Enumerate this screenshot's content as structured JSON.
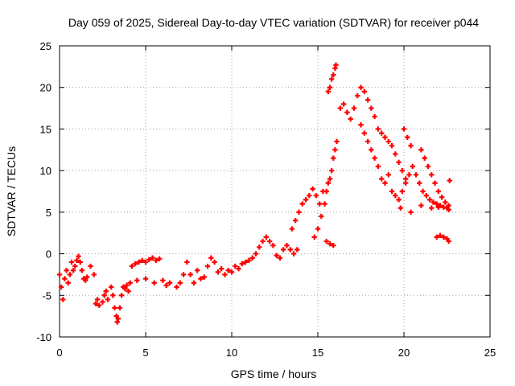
{
  "chart_data": {
    "type": "scatter",
    "title": "Day 059 of 2025, Sidereal Day-to-day VTEC variation (SDTVAR) for receiver p044",
    "xlabel": "GPS time / hours",
    "ylabel": "SDTVAR / TECUs",
    "xlim": [
      0,
      25
    ],
    "ylim": [
      -10,
      25
    ],
    "xticks": [
      0,
      5,
      10,
      15,
      20,
      25
    ],
    "yticks": [
      -10,
      -5,
      0,
      5,
      10,
      15,
      20,
      25
    ],
    "grid": true,
    "marker": "+",
    "color": "#ff0000",
    "series": [
      {
        "name": "SDTVAR",
        "points": [
          [
            0.0,
            -2.5
          ],
          [
            0.1,
            -4.0
          ],
          [
            0.2,
            -5.5
          ],
          [
            0.3,
            -3.0
          ],
          [
            0.4,
            -2.0
          ],
          [
            0.5,
            -3.5
          ],
          [
            0.6,
            -2.5
          ],
          [
            0.7,
            -1.0
          ],
          [
            0.8,
            -2.0
          ],
          [
            0.9,
            -1.5
          ],
          [
            1.0,
            -0.8
          ],
          [
            1.1,
            -0.3
          ],
          [
            1.2,
            -1.0
          ],
          [
            1.3,
            -2.0
          ],
          [
            1.4,
            -3.0
          ],
          [
            1.5,
            -3.2
          ],
          [
            1.6,
            -2.8
          ],
          [
            1.8,
            -1.5
          ],
          [
            2.0,
            -2.5
          ],
          [
            2.1,
            -6.0
          ],
          [
            2.2,
            -5.5
          ],
          [
            2.3,
            -6.2
          ],
          [
            2.5,
            -5.8
          ],
          [
            2.6,
            -5.0
          ],
          [
            2.7,
            -4.5
          ],
          [
            2.8,
            -5.5
          ],
          [
            3.0,
            -4.0
          ],
          [
            3.1,
            -5.0
          ],
          [
            3.2,
            -6.5
          ],
          [
            3.3,
            -7.5
          ],
          [
            3.35,
            -8.2
          ],
          [
            3.4,
            -7.8
          ],
          [
            3.5,
            -6.5
          ],
          [
            3.6,
            -5.0
          ],
          [
            3.7,
            -4.0
          ],
          [
            3.8,
            -4.2
          ],
          [
            3.9,
            -3.8
          ],
          [
            4.0,
            -4.5
          ],
          [
            4.1,
            -3.5
          ],
          [
            4.2,
            -1.5
          ],
          [
            4.4,
            -1.2
          ],
          [
            4.6,
            -1.0
          ],
          [
            4.8,
            -0.8
          ],
          [
            5.0,
            -1.0
          ],
          [
            5.2,
            -0.7
          ],
          [
            5.4,
            -0.5
          ],
          [
            5.6,
            -0.8
          ],
          [
            5.8,
            -0.6
          ],
          [
            4.5,
            -3.2
          ],
          [
            5.0,
            -3.0
          ],
          [
            5.5,
            -3.5
          ],
          [
            6.0,
            -3.2
          ],
          [
            6.2,
            -3.8
          ],
          [
            6.4,
            -3.5
          ],
          [
            6.8,
            -4.0
          ],
          [
            7.0,
            -3.5
          ],
          [
            7.2,
            -2.5
          ],
          [
            7.4,
            -1.0
          ],
          [
            7.6,
            -2.5
          ],
          [
            7.8,
            -3.5
          ],
          [
            8.0,
            -2.0
          ],
          [
            8.2,
            -3.0
          ],
          [
            8.4,
            -2.8
          ],
          [
            8.6,
            -1.5
          ],
          [
            8.8,
            -0.5
          ],
          [
            9.0,
            -1.0
          ],
          [
            9.2,
            -2.2
          ],
          [
            9.4,
            -1.8
          ],
          [
            9.6,
            -2.5
          ],
          [
            9.8,
            -2.0
          ],
          [
            10.0,
            -2.2
          ],
          [
            10.2,
            -1.5
          ],
          [
            10.4,
            -1.8
          ],
          [
            10.6,
            -1.2
          ],
          [
            10.8,
            -1.0
          ],
          [
            11.0,
            -0.8
          ],
          [
            11.2,
            -0.5
          ],
          [
            11.4,
            0.0
          ],
          [
            11.6,
            0.8
          ],
          [
            11.8,
            1.5
          ],
          [
            12.0,
            2.0
          ],
          [
            12.2,
            1.5
          ],
          [
            12.4,
            1.0
          ],
          [
            12.6,
            -0.2
          ],
          [
            12.8,
            -0.5
          ],
          [
            13.0,
            0.5
          ],
          [
            13.2,
            1.0
          ],
          [
            13.4,
            0.5
          ],
          [
            13.6,
            0.0
          ],
          [
            13.8,
            0.5
          ],
          [
            13.5,
            3.0
          ],
          [
            13.7,
            4.0
          ],
          [
            13.9,
            5.0
          ],
          [
            14.1,
            6.0
          ],
          [
            14.3,
            6.5
          ],
          [
            14.5,
            7.0
          ],
          [
            14.7,
            7.8
          ],
          [
            14.9,
            7.0
          ],
          [
            15.1,
            6.0
          ],
          [
            15.3,
            7.5
          ],
          [
            14.8,
            2.0
          ],
          [
            15.0,
            3.0
          ],
          [
            15.2,
            4.5
          ],
          [
            15.4,
            6.0
          ],
          [
            15.5,
            7.5
          ],
          [
            15.6,
            8.5
          ],
          [
            15.7,
            9.0
          ],
          [
            15.8,
            10.0
          ],
          [
            15.9,
            11.5
          ],
          [
            16.0,
            12.5
          ],
          [
            16.1,
            13.5
          ],
          [
            15.5,
            1.5
          ],
          [
            15.7,
            1.2
          ],
          [
            15.9,
            1.0
          ],
          [
            15.6,
            19.5
          ],
          [
            15.7,
            20.0
          ],
          [
            15.8,
            21.0
          ],
          [
            15.9,
            21.5
          ],
          [
            16.0,
            22.3
          ],
          [
            16.05,
            22.7
          ],
          [
            16.3,
            17.5
          ],
          [
            16.5,
            18.0
          ],
          [
            16.7,
            17.0
          ],
          [
            16.9,
            16.2
          ],
          [
            17.1,
            17.5
          ],
          [
            17.3,
            19.0
          ],
          [
            17.5,
            20.0
          ],
          [
            17.7,
            19.5
          ],
          [
            17.9,
            18.5
          ],
          [
            18.1,
            17.5
          ],
          [
            18.3,
            16.5
          ],
          [
            18.5,
            15.0
          ],
          [
            18.7,
            14.5
          ],
          [
            18.9,
            14.0
          ],
          [
            19.1,
            13.5
          ],
          [
            19.3,
            13.0
          ],
          [
            19.5,
            12.0
          ],
          [
            19.7,
            11.0
          ],
          [
            19.9,
            10.0
          ],
          [
            20.1,
            9.0
          ],
          [
            17.5,
            15.5
          ],
          [
            17.7,
            14.5
          ],
          [
            17.9,
            13.5
          ],
          [
            18.1,
            12.5
          ],
          [
            18.3,
            11.5
          ],
          [
            18.5,
            10.5
          ],
          [
            18.7,
            9.0
          ],
          [
            18.9,
            8.5
          ],
          [
            19.1,
            9.5
          ],
          [
            19.3,
            7.5
          ],
          [
            19.5,
            7.0
          ],
          [
            19.7,
            6.5
          ],
          [
            19.9,
            7.5
          ],
          [
            20.1,
            8.5
          ],
          [
            20.3,
            9.5
          ],
          [
            20.5,
            10.5
          ],
          [
            20.7,
            9.5
          ],
          [
            20.9,
            8.5
          ],
          [
            21.1,
            7.5
          ],
          [
            21.3,
            7.0
          ],
          [
            21.5,
            6.5
          ],
          [
            21.7,
            6.2
          ],
          [
            21.9,
            6.0
          ],
          [
            22.1,
            5.8
          ],
          [
            22.3,
            5.6
          ],
          [
            22.5,
            5.5
          ],
          [
            22.6,
            5.3
          ],
          [
            20.0,
            15.0
          ],
          [
            20.2,
            14.0
          ],
          [
            20.4,
            13.0
          ],
          [
            21.0,
            12.5
          ],
          [
            21.2,
            11.5
          ],
          [
            21.4,
            10.5
          ],
          [
            21.6,
            9.5
          ],
          [
            21.8,
            8.5
          ],
          [
            22.0,
            7.5
          ],
          [
            22.2,
            6.8
          ],
          [
            22.4,
            6.2
          ],
          [
            22.6,
            5.8
          ],
          [
            22.65,
            8.8
          ],
          [
            21.9,
            2.0
          ],
          [
            22.1,
            2.2
          ],
          [
            22.3,
            2.0
          ],
          [
            22.5,
            1.8
          ],
          [
            22.6,
            1.5
          ],
          [
            19.8,
            5.5
          ],
          [
            20.4,
            5.0
          ],
          [
            21.0,
            5.8
          ],
          [
            21.6,
            5.5
          ],
          [
            22.0,
            5.6
          ]
        ]
      }
    ]
  }
}
